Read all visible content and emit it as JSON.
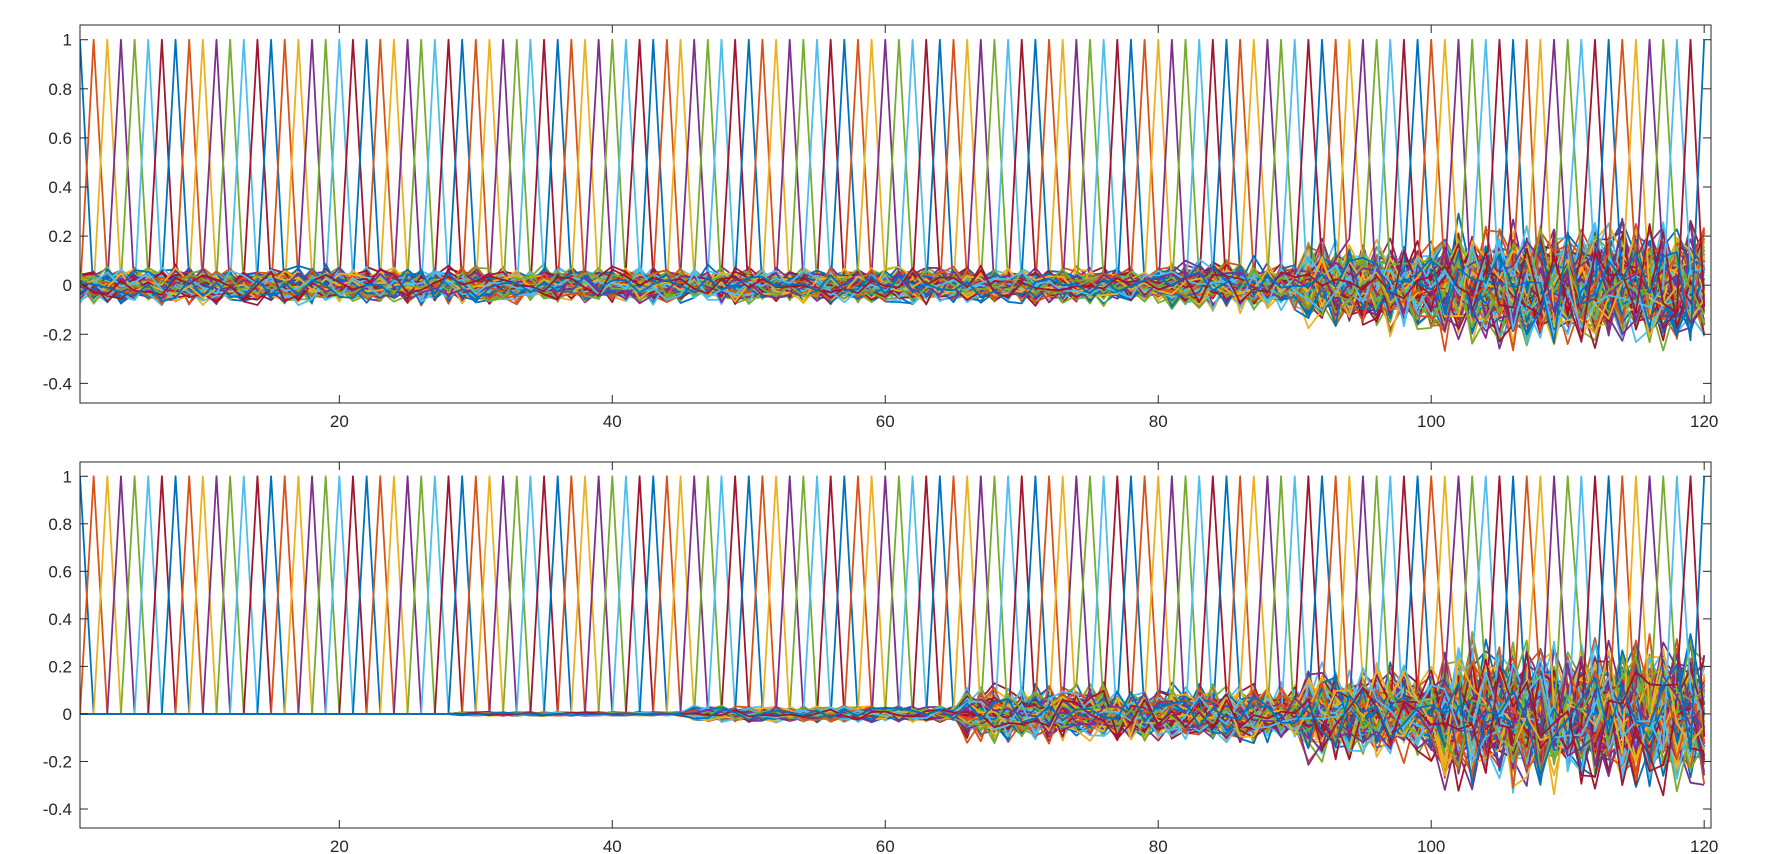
{
  "chart_data": [
    {
      "type": "line",
      "title": "",
      "xlabel": "",
      "ylabel": "",
      "xlim": [
        1,
        120.5
      ],
      "ylim": [
        -0.48,
        1.06
      ],
      "xticks": [
        20,
        40,
        60,
        80,
        100,
        120
      ],
      "xtick_labels": [
        "20",
        "40",
        "60",
        "80",
        "100",
        "120"
      ],
      "yticks": [
        1,
        0.8,
        0.6,
        0.4,
        0.2,
        0,
        -0.2,
        -0.4
      ],
      "ytick_labels": [
        "1",
        "0.8",
        "0.6",
        "0.4",
        "0.2",
        "0",
        "-0.2",
        "-0.4"
      ],
      "grid": false,
      "legend": "none",
      "series_count": 120,
      "series_description_values": {
        "peak_value": 1,
        "peak_at_x_equals_series_index": true,
        "noise_envelope": [
          {
            "x": [
              1,
              80
            ],
            "amplitude": 0.09
          },
          {
            "x": [
              80,
              90
            ],
            "amplitude": 0.12
          },
          {
            "x": [
              90,
              100
            ],
            "amplitude": 0.22
          },
          {
            "x": [
              100,
              120
            ],
            "amplitude": 0.3
          }
        ]
      },
      "color_order": [
        "#0072BD",
        "#D95319",
        "#EDB120",
        "#7E2F8E",
        "#77AC30",
        "#4DBEEE",
        "#A2142F"
      ]
    },
    {
      "type": "line",
      "title": "",
      "xlabel": "",
      "ylabel": "",
      "xlim": [
        1,
        120.5
      ],
      "ylim": [
        -0.48,
        1.06
      ],
      "xticks": [
        20,
        40,
        60,
        80,
        100,
        120
      ],
      "xtick_labels": [
        "20",
        "40",
        "60",
        "80",
        "100",
        "120"
      ],
      "yticks": [
        1,
        0.8,
        0.6,
        0.4,
        0.2,
        0,
        -0.2,
        -0.4
      ],
      "ytick_labels": [
        "1",
        "0.8",
        "0.6",
        "0.4",
        "0.2",
        "0",
        "-0.2",
        "-0.4"
      ],
      "grid": false,
      "legend": "none",
      "series_count": 120,
      "series_description_values": {
        "peak_value": 1,
        "peak_at_x_equals_series_index": true,
        "noise_envelope": [
          {
            "x": [
              1,
              28
            ],
            "amplitude": 0.0
          },
          {
            "x": [
              28,
              45
            ],
            "amplitude": 0.01
          },
          {
            "x": [
              45,
              65
            ],
            "amplitude": 0.04
          },
          {
            "x": [
              65,
              90
            ],
            "amplitude": 0.14
          },
          {
            "x": [
              90,
              100
            ],
            "amplitude": 0.25
          },
          {
            "x": [
              100,
              120
            ],
            "amplitude": 0.38
          }
        ]
      },
      "color_order": [
        "#0072BD",
        "#D95319",
        "#EDB120",
        "#7E2F8E",
        "#77AC30",
        "#4DBEEE",
        "#A2142F"
      ]
    }
  ]
}
